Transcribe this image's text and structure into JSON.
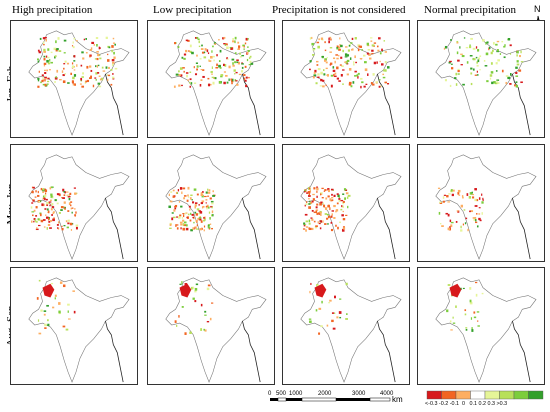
{
  "columns": [
    "High precipitation",
    "Low precipitation",
    "Precipitation is not considered",
    "Normal precipitation"
  ],
  "rows": [
    "Jan–Feb",
    "May–Jun",
    "Aug–Sep"
  ],
  "north_label": "N",
  "scale": {
    "ticks": [
      "0",
      "500",
      "1000",
      "2000",
      "3000",
      "4000"
    ],
    "unit": "km"
  },
  "legend": {
    "labels": [
      "< -0.3",
      "-0.2",
      "-0.1",
      "0",
      "0.1",
      "0.2",
      "0.3",
      "> 0.3"
    ],
    "label_text": "<-0.3 -0.2 -0.1  0   0.1 0.2 0.3 >0.3",
    "colors": [
      "#d7191c",
      "#f26522",
      "#fdae61",
      "#ffffff",
      "#e6f598",
      "#b8e05a",
      "#7ccd3c",
      "#33a02c"
    ]
  }
}
